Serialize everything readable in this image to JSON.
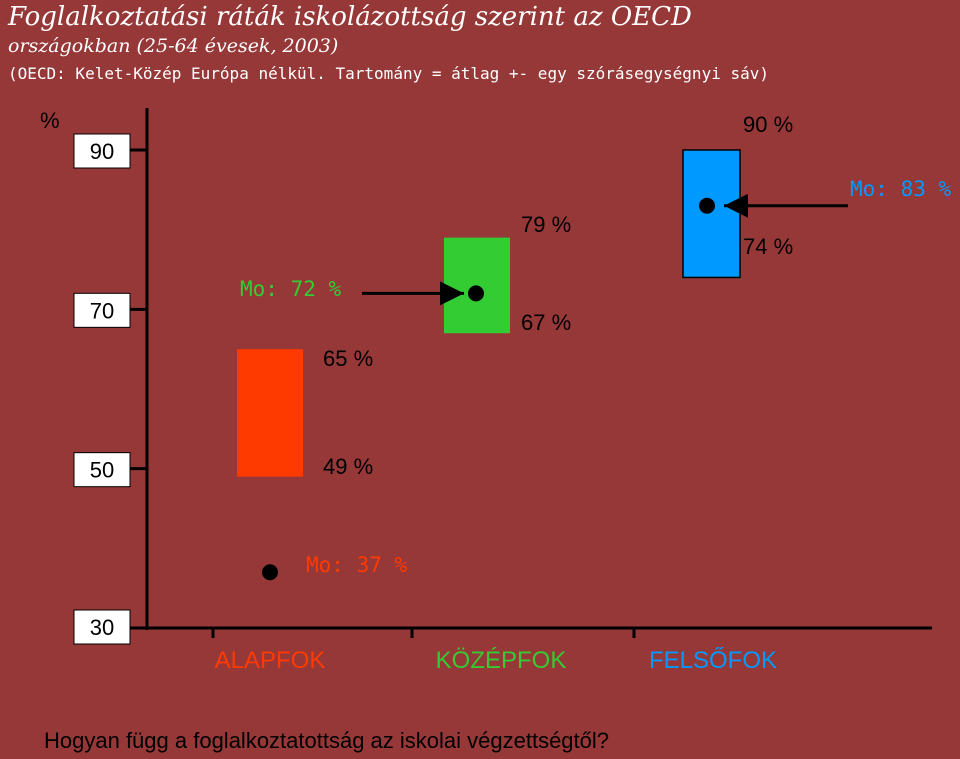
{
  "title": "Foglalkoztatási ráták iskolázottság szerint az OECD",
  "subtitle": "országokban (25-64 évesek, 2003)",
  "note": "(OECD: Kelet-Közép Európa nélkül. Tartomány = átlag +- egy szórásegységnyi sáv)",
  "footer": "Hogyan függ a foglalkoztatottság az iskolai végzettségtől?",
  "chart_data": {
    "type": "bar",
    "ylabel": "%",
    "yticks": [
      90,
      70,
      50,
      30
    ],
    "ylim": [
      30,
      90
    ],
    "categories": [
      "ALAPFOK",
      "KÖZÉPFOK",
      "FELSŐFOK"
    ],
    "ranges": [
      {
        "category": "ALAPFOK",
        "low": 49,
        "high": 65,
        "low_label": "49 %",
        "high_label": "65 %",
        "color": "#ff3a00"
      },
      {
        "category": "KÖZÉPFOK",
        "low": 67,
        "high": 79,
        "low_label": "67 %",
        "high_label": "79 %",
        "color": "#33cc33"
      },
      {
        "category": "FELSŐFOK",
        "low": 74,
        "high": 90,
        "low_label": "74 %",
        "high_label": "90 %",
        "color": "#0099ff"
      }
    ],
    "hungary": [
      {
        "category": "ALAPFOK",
        "value": 37,
        "label": "Mo: 37 %",
        "color": "#ff3a00"
      },
      {
        "category": "KÖZÉPFOK",
        "value": 72,
        "label": "Mo: 72 %",
        "color": "#33cc33"
      },
      {
        "category": "FELSŐFOK",
        "value": 83,
        "label": "Mo: 83 %",
        "color": "#0099ff"
      }
    ],
    "category_colors": [
      "#ff3a00",
      "#33cc33",
      "#0099ff"
    ],
    "grid": false
  }
}
